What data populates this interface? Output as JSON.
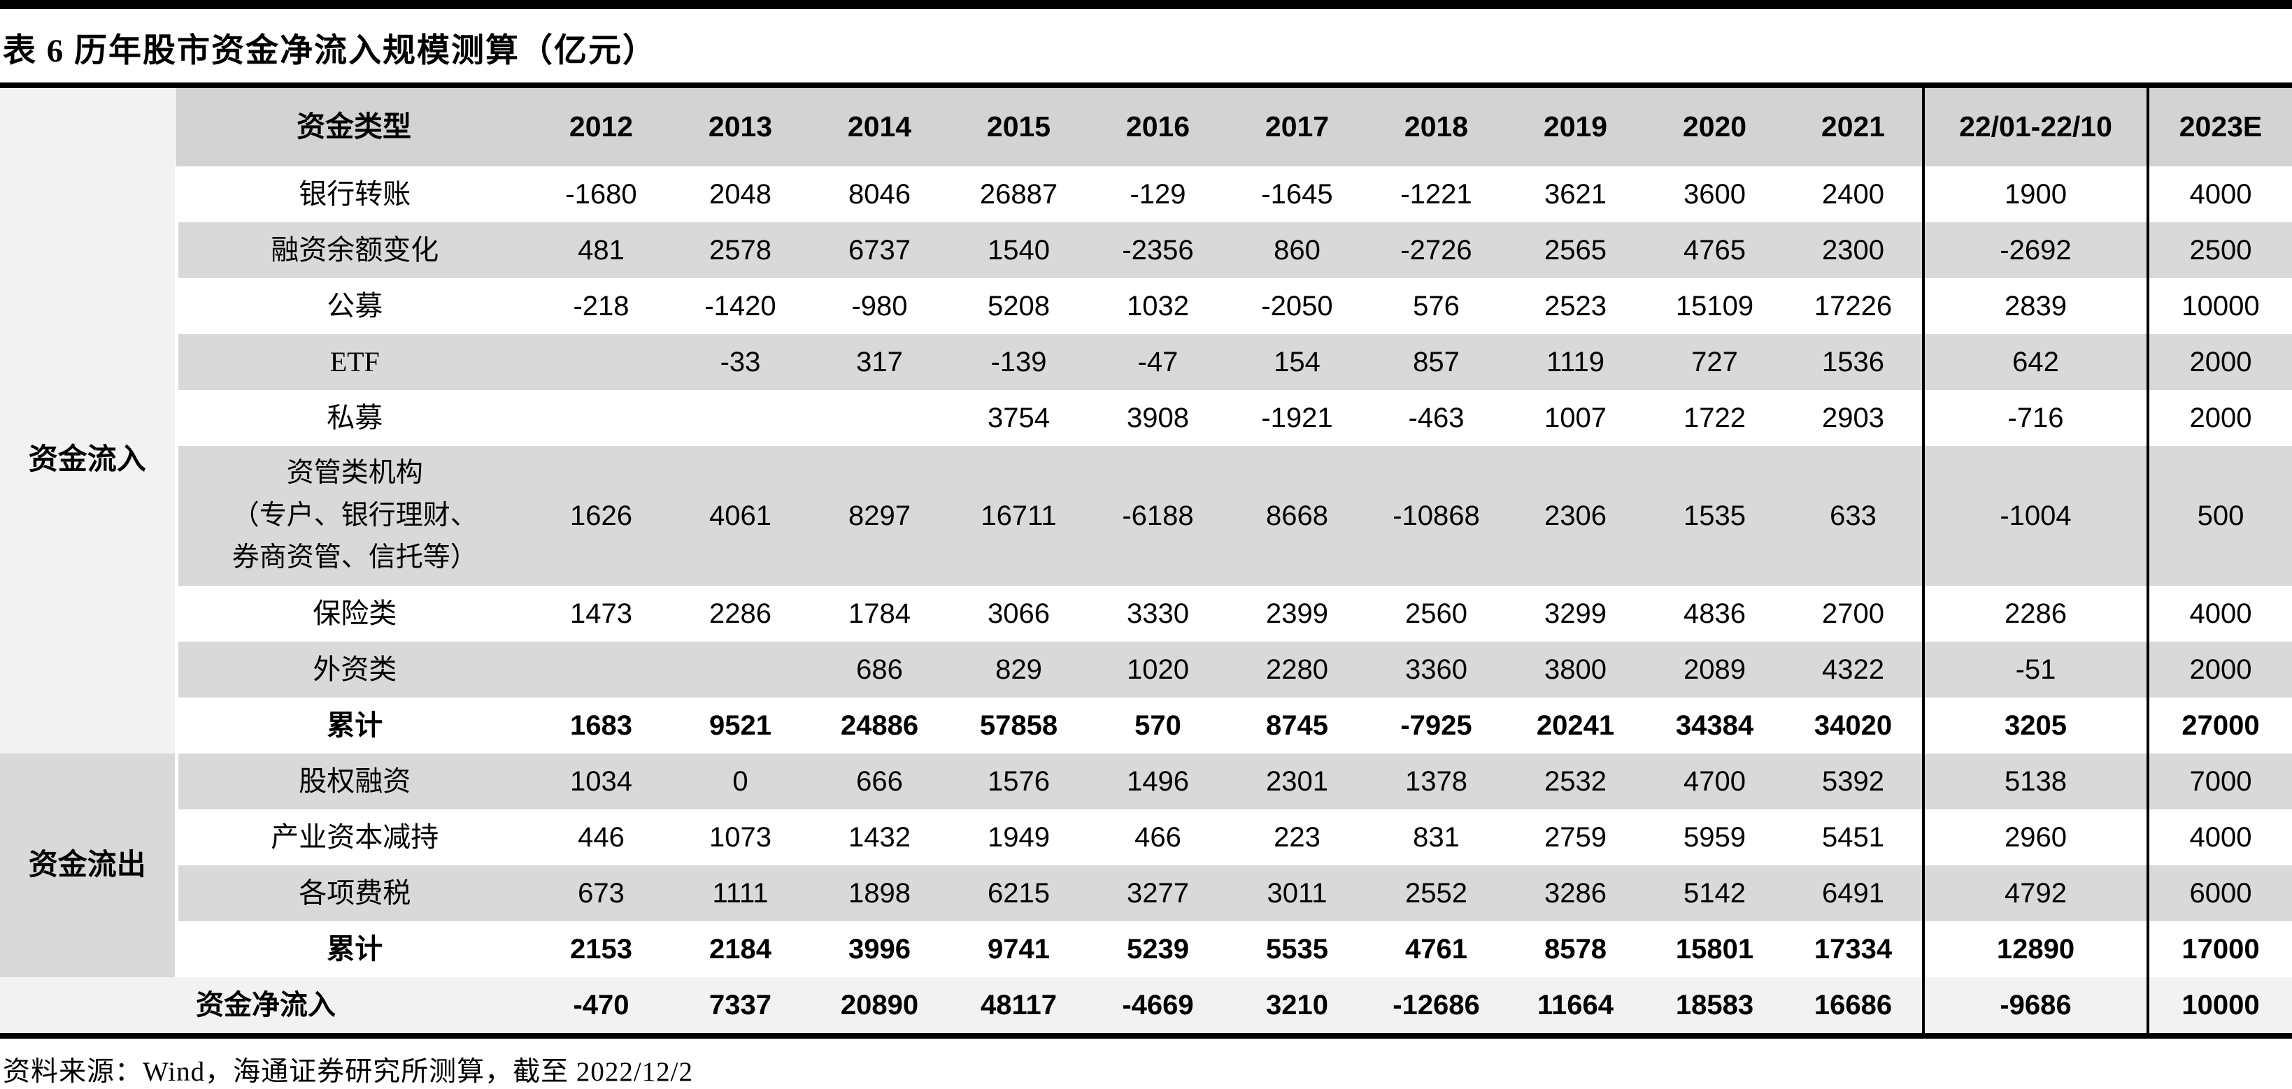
{
  "title": "表 6 历年股市资金净流入规模测算（亿元）",
  "footer": "资料来源：Wind，海通证券研究所测算，截至 2022/12/2",
  "colors": {
    "header_bg": "#d3d3d3",
    "stripe_bg": "#d9d9d9",
    "inflow_group_bg": "#f2f2f2",
    "outflow_group_bg": "#d9d9d9",
    "net_row_bg": "#f2f2f2",
    "rule_color": "#000000"
  },
  "table": {
    "type_header": "资金类型",
    "year_headers": [
      "2012",
      "2013",
      "2014",
      "2015",
      "2016",
      "2017",
      "2018",
      "2019",
      "2020",
      "2021"
    ],
    "period_header": "22/01-22/10",
    "estimate_header": "2023E",
    "sections": [
      {
        "group": "资金流入",
        "rows": [
          {
            "label": "银行转账",
            "values": [
              "-1680",
              "2048",
              "8046",
              "26887",
              "-129",
              "-1645",
              "-1221",
              "3621",
              "3600",
              "2400",
              "1900",
              "4000"
            ]
          },
          {
            "label": "融资余额变化",
            "values": [
              "481",
              "2578",
              "6737",
              "1540",
              "-2356",
              "860",
              "-2726",
              "2565",
              "4765",
              "2300",
              "-2692",
              "2500"
            ]
          },
          {
            "label": "公募",
            "values": [
              "-218",
              "-1420",
              "-980",
              "5208",
              "1032",
              "-2050",
              "576",
              "2523",
              "15109",
              "17226",
              "2839",
              "10000"
            ]
          },
          {
            "label": "ETF",
            "values": [
              "",
              "-33",
              "317",
              "-139",
              "-47",
              "154",
              "857",
              "1119",
              "727",
              "1536",
              "642",
              "2000"
            ]
          },
          {
            "label": "私募",
            "values": [
              "",
              "",
              "",
              "3754",
              "3908",
              "-1921",
              "-463",
              "1007",
              "1722",
              "2903",
              "-716",
              "2000"
            ]
          },
          {
            "label": "资管类机构（专户、银行理财、券商资管、信托等）",
            "label_lines": [
              "资管类机构",
              "（专户、银行理财、",
              "券商资管、信托等）"
            ],
            "values": [
              "1626",
              "4061",
              "8297",
              "16711",
              "-6188",
              "8668",
              "-10868",
              "2306",
              "1535",
              "633",
              "-1004",
              "500"
            ]
          },
          {
            "label": "保险类",
            "values": [
              "1473",
              "2286",
              "1784",
              "3066",
              "3330",
              "2399",
              "2560",
              "3299",
              "4836",
              "2700",
              "2286",
              "4000"
            ]
          },
          {
            "label": "外资类",
            "values": [
              "",
              "",
              "686",
              "829",
              "1020",
              "2280",
              "3360",
              "3800",
              "2089",
              "4322",
              "-51",
              "2000"
            ]
          },
          {
            "label": "累计",
            "bold": true,
            "values": [
              "1683",
              "9521",
              "24886",
              "57858",
              "570",
              "8745",
              "-7925",
              "20241",
              "34384",
              "34020",
              "3205",
              "27000"
            ]
          }
        ]
      },
      {
        "group": "资金流出",
        "rows": [
          {
            "label": "股权融资",
            "values": [
              "1034",
              "0",
              "666",
              "1576",
              "1496",
              "2301",
              "1378",
              "2532",
              "4700",
              "5392",
              "5138",
              "7000"
            ]
          },
          {
            "label": "产业资本减持",
            "values": [
              "446",
              "1073",
              "1432",
              "1949",
              "466",
              "223",
              "831",
              "2759",
              "5959",
              "5451",
              "2960",
              "4000"
            ]
          },
          {
            "label": "各项费税",
            "values": [
              "673",
              "1111",
              "1898",
              "6215",
              "3277",
              "3011",
              "2552",
              "3286",
              "5142",
              "6491",
              "4792",
              "6000"
            ]
          },
          {
            "label": "累计",
            "bold": true,
            "values": [
              "2153",
              "2184",
              "3996",
              "9741",
              "5239",
              "5535",
              "4761",
              "8578",
              "15801",
              "17334",
              "12890",
              "17000"
            ]
          }
        ]
      }
    ],
    "net_row": {
      "label": "资金净流入",
      "values": [
        "-470",
        "7337",
        "20890",
        "48117",
        "-4669",
        "3210",
        "-12686",
        "11664",
        "18583",
        "16686",
        "-9686",
        "10000"
      ]
    }
  }
}
